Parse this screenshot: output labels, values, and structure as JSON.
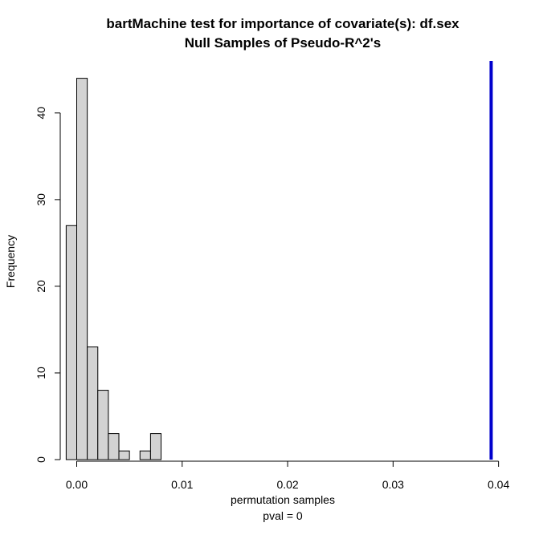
{
  "chart_data": {
    "type": "bar",
    "title": "bartMachine test for importance of covariate(s): df.sex",
    "subtitle": "Null Samples of Pseudo-R^2's",
    "xlabel": "permutation samples",
    "xlabel2": "pval =  0",
    "ylabel": "Frequency",
    "xlim": [
      -0.0008,
      0.0398
    ],
    "ylim": [
      0,
      46
    ],
    "x_ticks": [
      0.0,
      0.01,
      0.02,
      0.03,
      0.04
    ],
    "x_tick_labels": [
      "0.00",
      "0.01",
      "0.02",
      "0.03",
      "0.04"
    ],
    "y_ticks": [
      0,
      10,
      20,
      30,
      40
    ],
    "y_tick_labels": [
      "0",
      "10",
      "20",
      "30",
      "40"
    ],
    "bins": [
      {
        "x0": -0.001,
        "x1": 0.0,
        "count": 27
      },
      {
        "x0": 0.0,
        "x1": 0.001,
        "count": 44
      },
      {
        "x0": 0.001,
        "x1": 0.002,
        "count": 13
      },
      {
        "x0": 0.002,
        "x1": 0.003,
        "count": 8
      },
      {
        "x0": 0.003,
        "x1": 0.004,
        "count": 3
      },
      {
        "x0": 0.004,
        "x1": 0.005,
        "count": 1
      },
      {
        "x0": 0.005,
        "x1": 0.006,
        "count": 0
      },
      {
        "x0": 0.006,
        "x1": 0.007,
        "count": 1
      },
      {
        "x0": 0.007,
        "x1": 0.008,
        "count": 3
      }
    ],
    "observed_value": 0.0393,
    "bar_fill": "#d3d3d3",
    "bar_stroke": "#000000",
    "observed_line_color": "#0000cd"
  }
}
